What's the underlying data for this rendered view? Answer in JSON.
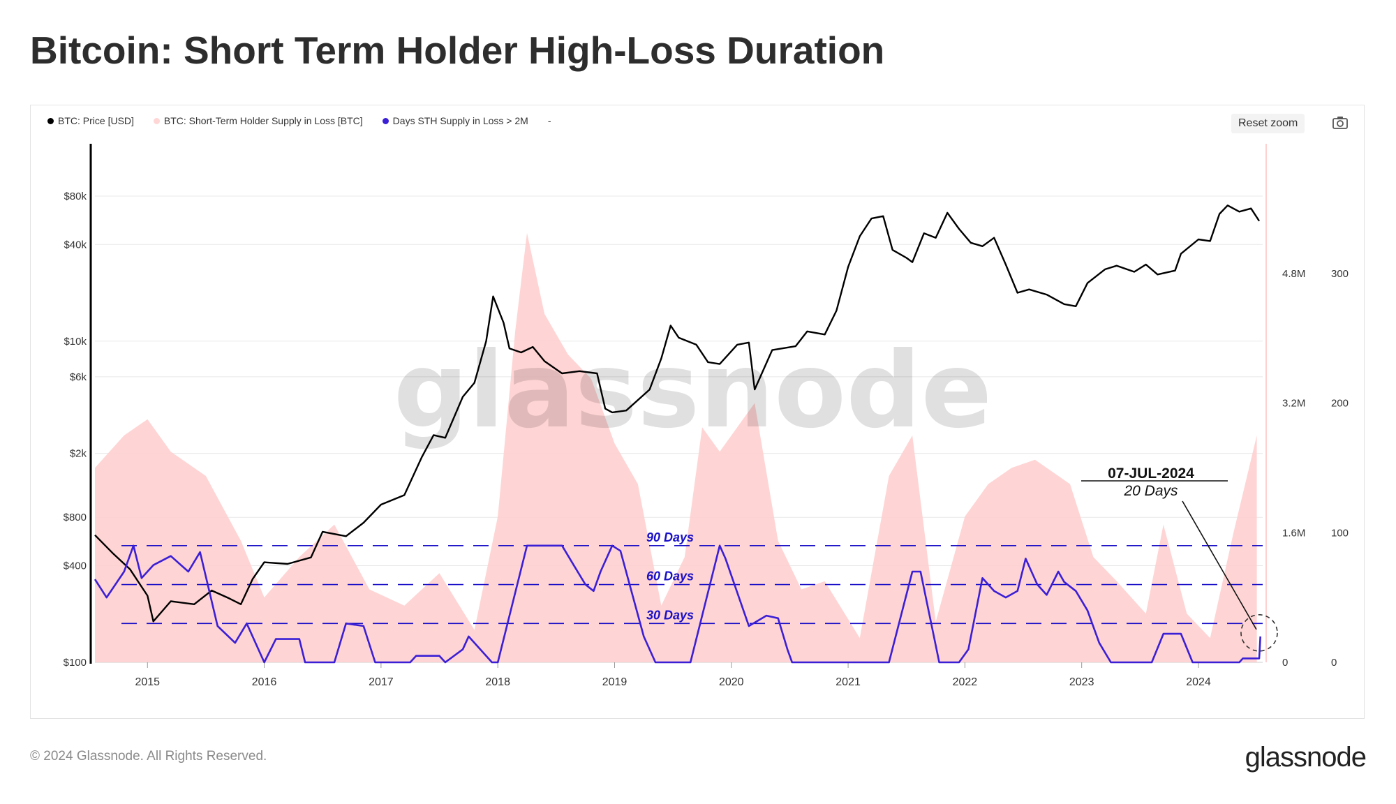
{
  "title": "Bitcoin: Short Term Holder High-Loss Duration",
  "footer": "© 2024 Glassnode. All Rights Reserved.",
  "brand": "glassnode",
  "watermark": "glassnode",
  "toolbar": {
    "reset_zoom": "Reset zoom",
    "camera_icon": "camera-icon"
  },
  "colors": {
    "price": "#000000",
    "supply": "#ffcccc",
    "days": "#3a1fd6",
    "annotation": "#1a10c8",
    "grid": "#e8e8e8"
  },
  "chart_data": {
    "type": "line",
    "legend": [
      {
        "label": "BTC: Price [USD]",
        "color": "#000000"
      },
      {
        "label": "BTC: Short-Term Holder Supply in Loss [BTC]",
        "color": "#ffd6d6"
      },
      {
        "label": "Days STH Supply in Loss > 2M",
        "color": "#3a1fd6"
      },
      {
        "label": "-",
        "color": ""
      }
    ],
    "legend_position": "top-left",
    "x_ticks": [
      "2015",
      "2016",
      "2017",
      "2018",
      "2019",
      "2020",
      "2021",
      "2022",
      "2023",
      "2024"
    ],
    "x_range": [
      2014.55,
      2024.55
    ],
    "y_left": {
      "scale": "log",
      "ticks": [
        "$80k",
        "$40k",
        "$10k",
        "$6k",
        "$2k",
        "$800",
        "$400",
        "$100"
      ],
      "tick_values": [
        80000,
        40000,
        10000,
        6000,
        2000,
        800,
        400,
        100
      ],
      "range": [
        100,
        80000
      ]
    },
    "y_mid": {
      "ticks": [
        "4.8M",
        "3.2M",
        "1.6M",
        "0"
      ],
      "tick_values": [
        4800000,
        3200000,
        1600000,
        0
      ],
      "range": [
        0,
        6400000
      ]
    },
    "y_right": {
      "ticks": [
        "300",
        "200",
        "100",
        "0"
      ],
      "tick_values": [
        300,
        200,
        100,
        0
      ],
      "range": [
        0,
        400
      ]
    },
    "grid": true,
    "series": [
      {
        "name": "BTC: Price [USD]",
        "axis": "left",
        "points": [
          [
            2014.55,
            620
          ],
          [
            2014.7,
            480
          ],
          [
            2014.85,
            380
          ],
          [
            2015.0,
            260
          ],
          [
            2015.05,
            180
          ],
          [
            2015.2,
            240
          ],
          [
            2015.4,
            230
          ],
          [
            2015.55,
            280
          ],
          [
            2015.7,
            250
          ],
          [
            2015.8,
            230
          ],
          [
            2015.9,
            330
          ],
          [
            2016.0,
            420
          ],
          [
            2016.2,
            410
          ],
          [
            2016.4,
            450
          ],
          [
            2016.5,
            650
          ],
          [
            2016.7,
            610
          ],
          [
            2016.85,
            740
          ],
          [
            2017.0,
            960
          ],
          [
            2017.2,
            1100
          ],
          [
            2017.35,
            1900
          ],
          [
            2017.45,
            2600
          ],
          [
            2017.55,
            2500
          ],
          [
            2017.7,
            4500
          ],
          [
            2017.8,
            5500
          ],
          [
            2017.9,
            10000
          ],
          [
            2017.96,
            19000
          ],
          [
            2018.05,
            13000
          ],
          [
            2018.1,
            9000
          ],
          [
            2018.2,
            8500
          ],
          [
            2018.3,
            9200
          ],
          [
            2018.4,
            7500
          ],
          [
            2018.55,
            6300
          ],
          [
            2018.7,
            6500
          ],
          [
            2018.85,
            6300
          ],
          [
            2018.92,
            3800
          ],
          [
            2018.98,
            3600
          ],
          [
            2019.1,
            3700
          ],
          [
            2019.3,
            5000
          ],
          [
            2019.4,
            7800
          ],
          [
            2019.48,
            12500
          ],
          [
            2019.55,
            10500
          ],
          [
            2019.7,
            9500
          ],
          [
            2019.8,
            7400
          ],
          [
            2019.9,
            7200
          ],
          [
            2020.05,
            9500
          ],
          [
            2020.15,
            9800
          ],
          [
            2020.2,
            5000
          ],
          [
            2020.35,
            8800
          ],
          [
            2020.55,
            9300
          ],
          [
            2020.65,
            11500
          ],
          [
            2020.8,
            11000
          ],
          [
            2020.9,
            15500
          ],
          [
            2021.0,
            29000
          ],
          [
            2021.1,
            45000
          ],
          [
            2021.2,
            58000
          ],
          [
            2021.3,
            60000
          ],
          [
            2021.38,
            37000
          ],
          [
            2021.5,
            33000
          ],
          [
            2021.55,
            31000
          ],
          [
            2021.65,
            47000
          ],
          [
            2021.75,
            44000
          ],
          [
            2021.85,
            63000
          ],
          [
            2021.95,
            50000
          ],
          [
            2022.05,
            41000
          ],
          [
            2022.15,
            39000
          ],
          [
            2022.25,
            44000
          ],
          [
            2022.35,
            30000
          ],
          [
            2022.45,
            20000
          ],
          [
            2022.55,
            21000
          ],
          [
            2022.7,
            19500
          ],
          [
            2022.85,
            17000
          ],
          [
            2022.95,
            16500
          ],
          [
            2023.05,
            23000
          ],
          [
            2023.2,
            28000
          ],
          [
            2023.3,
            29500
          ],
          [
            2023.45,
            27000
          ],
          [
            2023.55,
            30000
          ],
          [
            2023.65,
            26000
          ],
          [
            2023.8,
            27500
          ],
          [
            2023.85,
            35000
          ],
          [
            2024.0,
            43000
          ],
          [
            2024.1,
            42000
          ],
          [
            2024.18,
            62000
          ],
          [
            2024.25,
            70000
          ],
          [
            2024.35,
            64000
          ],
          [
            2024.45,
            67000
          ],
          [
            2024.52,
            56000
          ]
        ]
      },
      {
        "name": "BTC: Short-Term Holder Supply in Loss [BTC]",
        "axis": "mid",
        "points": [
          [
            2014.55,
            2400000
          ],
          [
            2014.8,
            2800000
          ],
          [
            2015.0,
            3000000
          ],
          [
            2015.2,
            2600000
          ],
          [
            2015.5,
            2300000
          ],
          [
            2015.8,
            1500000
          ],
          [
            2016.0,
            800000
          ],
          [
            2016.3,
            1300000
          ],
          [
            2016.6,
            1700000
          ],
          [
            2016.9,
            900000
          ],
          [
            2017.2,
            700000
          ],
          [
            2017.5,
            1100000
          ],
          [
            2017.8,
            400000
          ],
          [
            2018.0,
            1800000
          ],
          [
            2018.15,
            4100000
          ],
          [
            2018.25,
            5300000
          ],
          [
            2018.4,
            4300000
          ],
          [
            2018.6,
            3800000
          ],
          [
            2018.8,
            3500000
          ],
          [
            2019.0,
            2700000
          ],
          [
            2019.2,
            2200000
          ],
          [
            2019.4,
            700000
          ],
          [
            2019.6,
            1300000
          ],
          [
            2019.75,
            2900000
          ],
          [
            2019.9,
            2600000
          ],
          [
            2020.2,
            3200000
          ],
          [
            2020.4,
            1500000
          ],
          [
            2020.6,
            900000
          ],
          [
            2020.8,
            1000000
          ],
          [
            2021.1,
            300000
          ],
          [
            2021.35,
            2300000
          ],
          [
            2021.55,
            2800000
          ],
          [
            2021.75,
            500000
          ],
          [
            2022.0,
            1800000
          ],
          [
            2022.2,
            2200000
          ],
          [
            2022.4,
            2400000
          ],
          [
            2022.6,
            2500000
          ],
          [
            2022.9,
            2200000
          ],
          [
            2023.1,
            1300000
          ],
          [
            2023.3,
            1000000
          ],
          [
            2023.55,
            600000
          ],
          [
            2023.7,
            1700000
          ],
          [
            2023.9,
            600000
          ],
          [
            2024.1,
            300000
          ],
          [
            2024.3,
            1600000
          ],
          [
            2024.5,
            2800000
          ]
        ]
      },
      {
        "name": "Days STH Supply in Loss > 2M",
        "axis": "right",
        "points": [
          [
            2014.55,
            64
          ],
          [
            2014.65,
            50
          ],
          [
            2014.8,
            70
          ],
          [
            2014.88,
            90
          ],
          [
            2014.95,
            65
          ],
          [
            2015.05,
            75
          ],
          [
            2015.2,
            82
          ],
          [
            2015.35,
            70
          ],
          [
            2015.45,
            85
          ],
          [
            2015.6,
            28
          ],
          [
            2015.75,
            15
          ],
          [
            2015.85,
            30
          ],
          [
            2016.0,
            0
          ],
          [
            2016.1,
            18
          ],
          [
            2016.3,
            18
          ],
          [
            2016.35,
            0
          ],
          [
            2016.6,
            0
          ],
          [
            2016.7,
            30
          ],
          [
            2016.85,
            28
          ],
          [
            2016.95,
            0
          ],
          [
            2017.25,
            0
          ],
          [
            2017.3,
            5
          ],
          [
            2017.5,
            5
          ],
          [
            2017.55,
            0
          ],
          [
            2017.7,
            10
          ],
          [
            2017.75,
            20
          ],
          [
            2017.95,
            0
          ],
          [
            2018.0,
            0
          ],
          [
            2018.25,
            90
          ],
          [
            2018.55,
            90
          ],
          [
            2018.65,
            75
          ],
          [
            2018.75,
            60
          ],
          [
            2018.82,
            55
          ],
          [
            2018.88,
            70
          ],
          [
            2018.98,
            90
          ],
          [
            2019.05,
            86
          ],
          [
            2019.25,
            20
          ],
          [
            2019.35,
            0
          ],
          [
            2019.65,
            0
          ],
          [
            2019.9,
            90
          ],
          [
            2019.95,
            80
          ],
          [
            2020.15,
            28
          ],
          [
            2020.3,
            36
          ],
          [
            2020.4,
            34
          ],
          [
            2020.48,
            10
          ],
          [
            2020.52,
            0
          ],
          [
            2021.35,
            0
          ],
          [
            2021.55,
            70
          ],
          [
            2021.62,
            70
          ],
          [
            2021.78,
            0
          ],
          [
            2021.95,
            0
          ],
          [
            2022.03,
            10
          ],
          [
            2022.15,
            65
          ],
          [
            2022.25,
            55
          ],
          [
            2022.35,
            50
          ],
          [
            2022.45,
            55
          ],
          [
            2022.52,
            80
          ],
          [
            2022.62,
            60
          ],
          [
            2022.7,
            52
          ],
          [
            2022.8,
            70
          ],
          [
            2022.85,
            62
          ],
          [
            2022.95,
            55
          ],
          [
            2023.05,
            40
          ],
          [
            2023.15,
            15
          ],
          [
            2023.25,
            0
          ],
          [
            2023.6,
            0
          ],
          [
            2023.7,
            22
          ],
          [
            2023.85,
            22
          ],
          [
            2023.95,
            0
          ],
          [
            2024.35,
            0
          ],
          [
            2024.38,
            3
          ],
          [
            2024.52,
            3
          ],
          [
            2024.53,
            20
          ]
        ]
      }
    ],
    "reference_lines": [
      {
        "label": "90 Days",
        "value": 90
      },
      {
        "label": "60 Days",
        "value": 60
      },
      {
        "label": "30 Days",
        "value": 30
      }
    ],
    "annotation": {
      "date": "07-JUL-2024",
      "text": "20 Days",
      "x": 2024.52,
      "value": 20
    }
  }
}
